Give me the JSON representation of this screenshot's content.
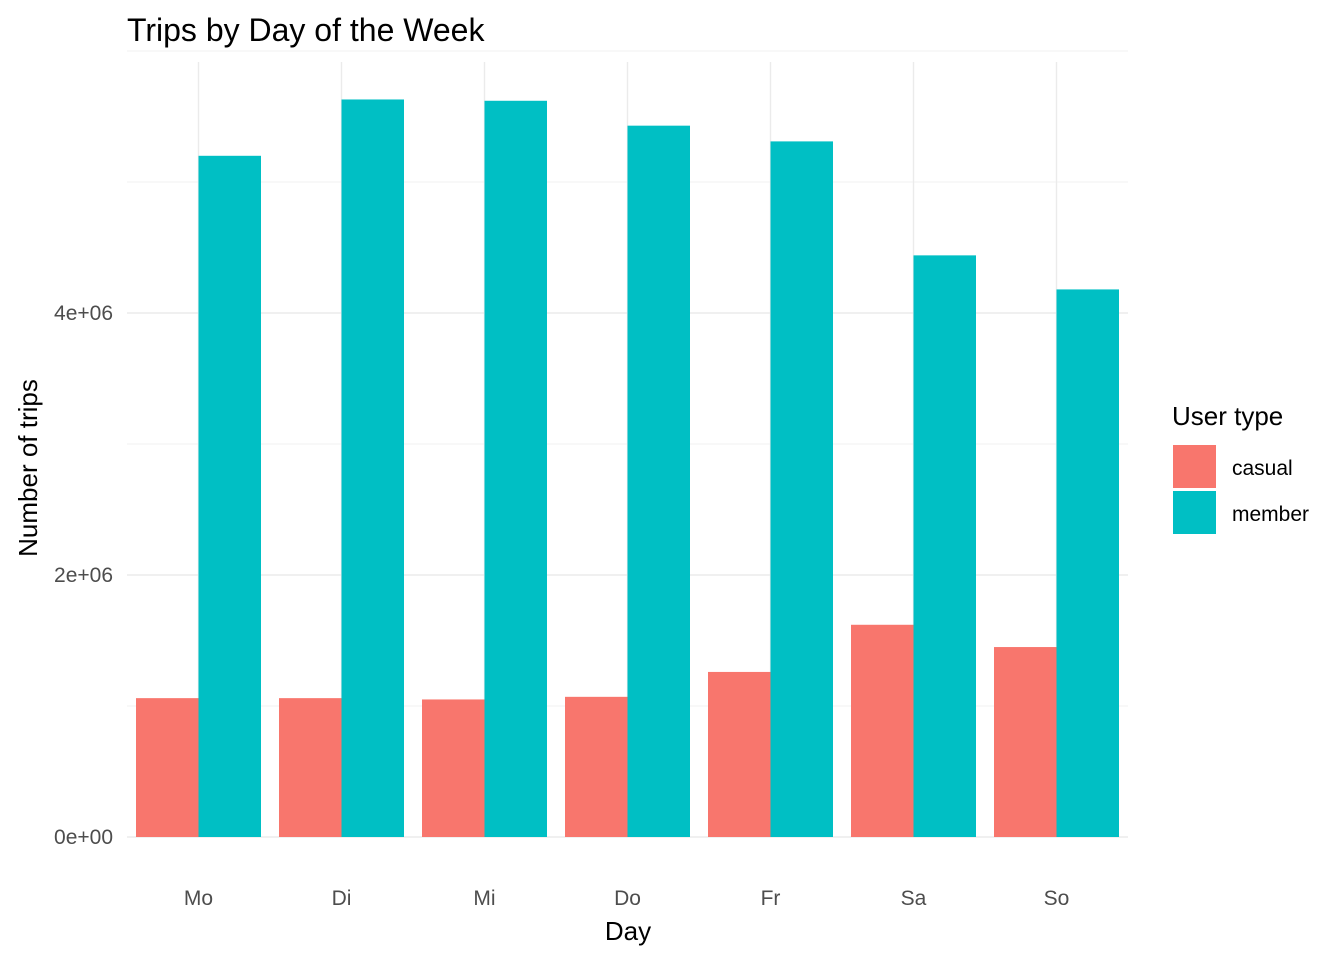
{
  "chart_data": {
    "type": "bar",
    "title": "Trips by Day of the Week",
    "xlabel": "Day",
    "ylabel": "Number of trips",
    "categories": [
      "Mo",
      "Di",
      "Mi",
      "Do",
      "Fr",
      "Sa",
      "So"
    ],
    "series": [
      {
        "name": "casual",
        "color": "#F8766D",
        "values": [
          1060000,
          1060000,
          1050000,
          1070000,
          1260000,
          1620000,
          1450000
        ]
      },
      {
        "name": "member",
        "color": "#00BFC4",
        "values": [
          5200000,
          5630000,
          5620000,
          5430000,
          5310000,
          4440000,
          4180000
        ]
      }
    ],
    "ylim": [
      0,
      5630000
    ],
    "yticks": [
      0,
      2000000,
      4000000
    ],
    "ytick_labels": [
      "0e+00",
      "2e+06",
      "4e+06"
    ],
    "grid": true,
    "legend": {
      "title": "User type",
      "position": "right"
    }
  }
}
